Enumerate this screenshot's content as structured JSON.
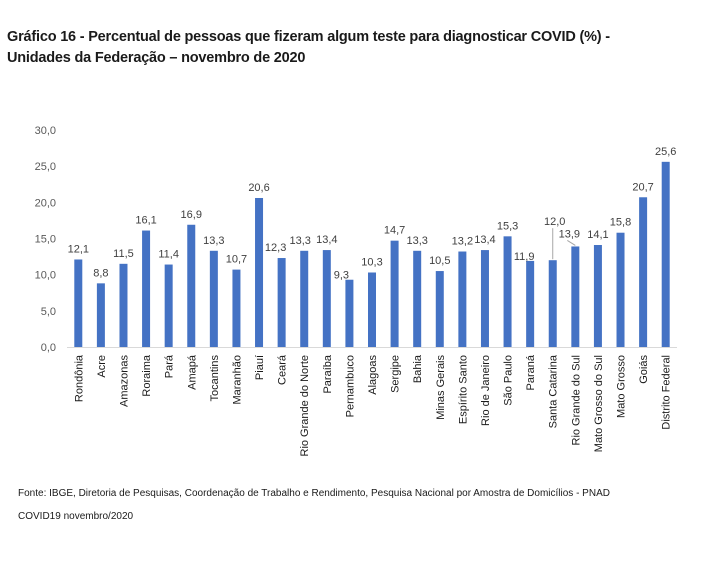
{
  "title_line1": "Gráfico 16 - Percentual de pessoas que fizeram algum teste para diagnosticar COVID (%) -",
  "title_line2": "Unidades da Federação – novembro de 2020",
  "source_line1": "Fonte: IBGE, Diretoria de Pesquisas, Coordenação de Trabalho e Rendimento, Pesquisa Nacional por Amostra de Domicílios - PNAD",
  "source_line2": "COVID19 novembro/2020",
  "chart_data": {
    "type": "bar",
    "title": "Gráfico 16 - Percentual de pessoas que fizeram algum teste para diagnosticar COVID (%) - Unidades da Federação – novembro de 2020",
    "xlabel": "",
    "ylabel": "",
    "ylim": [
      0,
      30
    ],
    "yticks": [
      0,
      5,
      10,
      15,
      20,
      25,
      30
    ],
    "ytick_labels": [
      "0,0",
      "5,0",
      "10,0",
      "15,0",
      "20,0",
      "25,0",
      "30,0"
    ],
    "grid": false,
    "legend": "none",
    "bar_color": "#4472C4",
    "categories": [
      "Rondônia",
      "Acre",
      "Amazonas",
      "Roraima",
      "Pará",
      "Amapá",
      "Tocantins",
      "Maranhão",
      "Piauí",
      "Ceará",
      "Rio Grande do Norte",
      "Paraíba",
      "Pernambuco",
      "Alagoas",
      "Sergipe",
      "Bahia",
      "Minas Gerais",
      "Espírito Santo",
      "Rio de Janeiro",
      "São Paulo",
      "Paraná",
      "Santa Catarina",
      "Rio Grande do Sul",
      "Mato Grosso do Sul",
      "Mato Grosso",
      "Goiás",
      "Distrito Federal"
    ],
    "values": [
      12.1,
      8.8,
      11.5,
      16.1,
      11.4,
      16.9,
      13.3,
      10.7,
      20.6,
      12.3,
      13.3,
      13.4,
      9.3,
      10.3,
      14.7,
      13.3,
      10.5,
      13.2,
      13.4,
      15.3,
      11.9,
      12.0,
      13.9,
      14.1,
      15.8,
      20.7,
      25.6
    ],
    "value_labels": [
      "12,1",
      "8,8",
      "11,5",
      "16,1",
      "11,4",
      "16,9",
      "13,3",
      "10,7",
      "20,6",
      "12,3",
      "13,3",
      "13,4",
      "9,3",
      "10,3",
      "14,7",
      "13,3",
      "10,5",
      "13,2",
      "13,4",
      "15,3",
      "11,9",
      "12,0",
      "13,9",
      "14,1",
      "15,8",
      "20,7",
      "25,6"
    ]
  }
}
